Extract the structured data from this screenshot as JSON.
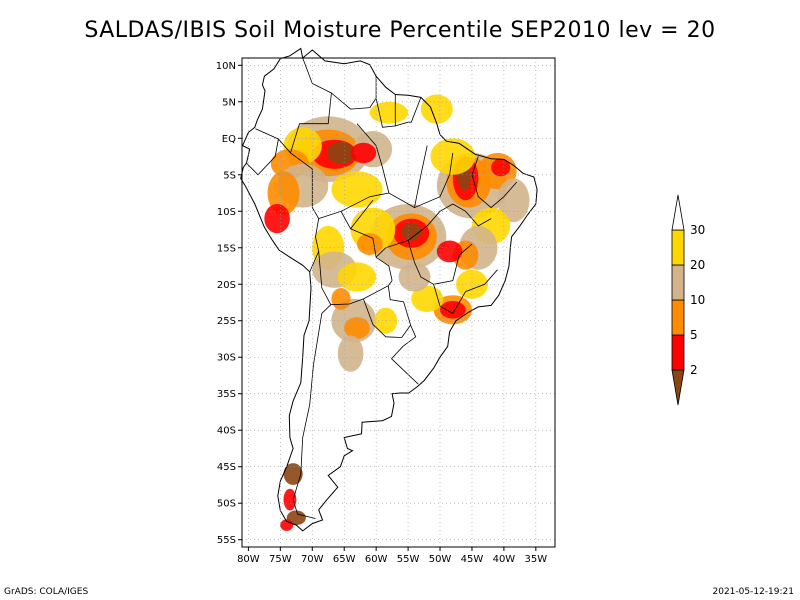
{
  "title": "SALDAS/IBIS Soil Moisture Percentile SEP2010 lev = 20",
  "footer": {
    "left": "GrADS: COLA/IGES",
    "right": "2021-05-12-19:21"
  },
  "map": {
    "lat_range": [
      -56,
      11
    ],
    "lon_range": [
      -81,
      -32
    ],
    "lat_ticks": [
      {
        "value": 10,
        "label": "10N"
      },
      {
        "value": 5,
        "label": "5N"
      },
      {
        "value": 0,
        "label": "EQ"
      },
      {
        "value": -5,
        "label": "5S"
      },
      {
        "value": -10,
        "label": "10S"
      },
      {
        "value": -15,
        "label": "15S"
      },
      {
        "value": -20,
        "label": "20S"
      },
      {
        "value": -25,
        "label": "25S"
      },
      {
        "value": -30,
        "label": "30S"
      },
      {
        "value": -35,
        "label": "35S"
      },
      {
        "value": -40,
        "label": "40S"
      },
      {
        "value": -45,
        "label": "45S"
      },
      {
        "value": -50,
        "label": "50S"
      },
      {
        "value": -55,
        "label": "55S"
      }
    ],
    "lon_ticks": [
      {
        "value": -80,
        "label": "80W"
      },
      {
        "value": -75,
        "label": "75W"
      },
      {
        "value": -70,
        "label": "70W"
      },
      {
        "value": -65,
        "label": "65W"
      },
      {
        "value": -60,
        "label": "60W"
      },
      {
        "value": -55,
        "label": "55W"
      },
      {
        "value": -50,
        "label": "50W"
      },
      {
        "value": -45,
        "label": "45W"
      },
      {
        "value": -40,
        "label": "40W"
      },
      {
        "value": -35,
        "label": "35W"
      }
    ],
    "grid": true
  },
  "legend": {
    "levels": [
      "2",
      "5",
      "10",
      "20",
      "30"
    ],
    "colors": [
      "#8b4513",
      "#ff0000",
      "#ff8c00",
      "#d2b48c",
      "#ffd700",
      "#ffffff"
    ]
  },
  "colors": {
    "brown": "#8b4513",
    "red": "#ff0000",
    "orange": "#ff8c00",
    "tan": "#d2b48c",
    "gold": "#ffd700"
  }
}
